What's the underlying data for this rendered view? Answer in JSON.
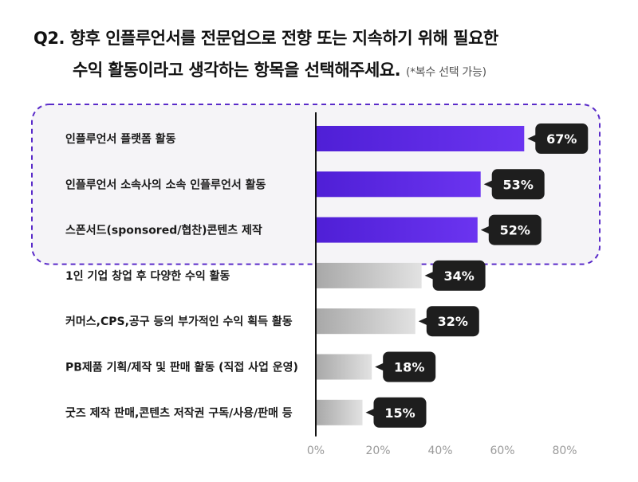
{
  "title": {
    "line1": "Q2. 향후 인플루언서를 전문업으로 전향 또는 지속하기 위해 필요한",
    "line2": "수익 활동이라고 생각하는 항목을 선택해주세요.",
    "note": "(*복수 선택 가능)"
  },
  "colors": {
    "highlight_bar": "#4f1fd6",
    "highlight_bar_light": "#6b34f0",
    "other_bar": "#a8a8a8",
    "other_bar_light": "#e2e2e2",
    "label_bubble": "#1e1e1e",
    "highlight_box_border": "#5a2bc9",
    "highlight_box_fill": "#f5f4f7",
    "axis": "#111111"
  },
  "chart_data": {
    "type": "bar",
    "orientation": "horizontal",
    "categories": [
      "인플루언서 플랫폼 활동",
      "인플루언서 소속사의 소속 인플루언서 활동",
      "스폰서드(sponsored/협찬)콘텐츠 제작",
      "1인 기업 창업 후 다양한 수익 활동",
      "커머스,CPS,공구 등의 부가적인 수익 획득 활동",
      "PB제품 기획/제작 및 판매 활동 (직접 사업 운영)",
      "굿즈 제작 판매,콘텐츠 저작권 구독/사용/판매 등"
    ],
    "values": [
      67,
      53,
      52,
      34,
      32,
      18,
      15
    ],
    "value_labels": [
      "67%",
      "53%",
      "52%",
      "34%",
      "32%",
      "18%",
      "15%"
    ],
    "highlighted": [
      true,
      true,
      true,
      false,
      false,
      false,
      false
    ],
    "xlim": [
      0,
      80
    ],
    "xticks": [
      0,
      20,
      40,
      60,
      80
    ],
    "xtick_labels": [
      "0%",
      "20%",
      "40%",
      "60%",
      "80%"
    ],
    "grid": false,
    "legend": "none"
  }
}
